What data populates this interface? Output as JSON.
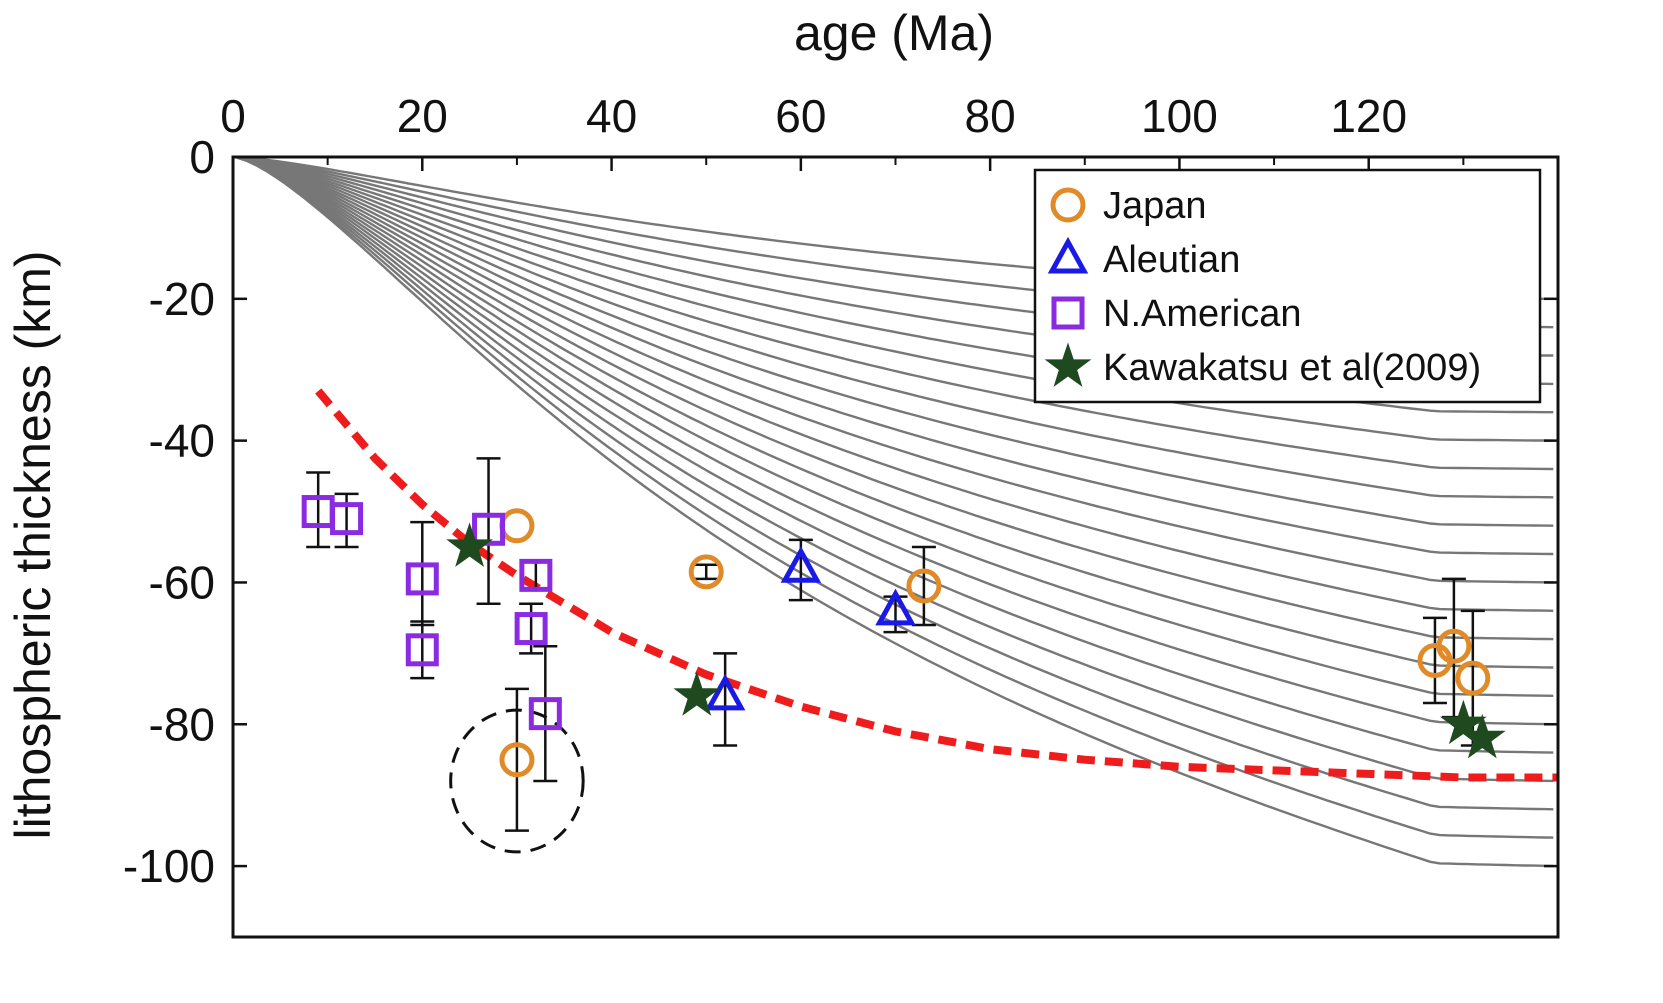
{
  "chart_data": {
    "type": "scatter",
    "xlabel": "age (Ma)",
    "ylabel": "lithospheric thickness (km)",
    "xlim": [
      0,
      140
    ],
    "ylim": [
      -110,
      0
    ],
    "x_ticks": [
      0,
      20,
      40,
      60,
      80,
      100,
      120
    ],
    "y_ticks": [
      0,
      -20,
      -40,
      -60,
      -80,
      -100
    ],
    "x_axis_position": "top",
    "legend_position": "top-right",
    "grid": false,
    "colors": {
      "japan": "#e08a28",
      "aleutian": "#1a1ae6",
      "namerican": "#8a2be2",
      "kawakatsu": "#1f4a1f",
      "model_curves": "#777777",
      "fit_curve": "#ee1c1c",
      "error_bars": "#111111"
    },
    "series": [
      {
        "name": "Japan",
        "marker": "circle",
        "points": [
          {
            "x": 30,
            "y": -52,
            "err_lo": -52,
            "err_hi": -52
          },
          {
            "x": 30,
            "y": -85,
            "err_lo": -95,
            "err_hi": -75
          },
          {
            "x": 50,
            "y": -58.5,
            "err_lo": -59.5,
            "err_hi": -57.5
          },
          {
            "x": 73,
            "y": -60.5,
            "err_lo": -66,
            "err_hi": -55
          },
          {
            "x": 127,
            "y": -71,
            "err_lo": -77,
            "err_hi": -65
          },
          {
            "x": 129,
            "y": -69,
            "err_lo": -79,
            "err_hi": -59.5
          },
          {
            "x": 131,
            "y": -73.5,
            "err_lo": -83,
            "err_hi": -64
          }
        ]
      },
      {
        "name": "Aleutian",
        "marker": "triangle",
        "points": [
          {
            "x": 52,
            "y": -76,
            "err_lo": -83,
            "err_hi": -70
          },
          {
            "x": 60,
            "y": -58,
            "err_lo": -62.5,
            "err_hi": -54
          },
          {
            "x": 70,
            "y": -64,
            "err_lo": -67,
            "err_hi": -62
          }
        ]
      },
      {
        "name": "N.American",
        "marker": "square",
        "points": [
          {
            "x": 9,
            "y": -50,
            "err_lo": -55,
            "err_hi": -44.5
          },
          {
            "x": 12,
            "y": -51,
            "err_lo": -55,
            "err_hi": -47.5
          },
          {
            "x": 20,
            "y": -59.5,
            "err_lo": -66,
            "err_hi": -51.5
          },
          {
            "x": 20,
            "y": -69.5,
            "err_lo": -73.5,
            "err_hi": -65.5
          },
          {
            "x": 27,
            "y": -52.5,
            "err_lo": -63,
            "err_hi": -42.5
          },
          {
            "x": 32,
            "y": -59,
            "err_lo": -61,
            "err_hi": -57
          },
          {
            "x": 31.5,
            "y": -66.5,
            "err_lo": -70,
            "err_hi": -63
          },
          {
            "x": 33,
            "y": -78.5,
            "err_lo": -88,
            "err_hi": -69
          }
        ]
      },
      {
        "name": "Kawakatsu et al(2009)",
        "marker": "star",
        "points": [
          {
            "x": 25,
            "y": -55
          },
          {
            "x": 49,
            "y": -76
          },
          {
            "x": 130,
            "y": -80
          },
          {
            "x": 132,
            "y": -82
          }
        ]
      }
    ],
    "model_curve_scales": [
      20,
      24,
      28,
      32,
      36,
      40,
      44,
      48,
      52,
      56,
      60,
      64,
      68,
      72,
      76,
      80,
      84,
      88,
      92,
      96,
      100
    ],
    "fit_curve": {
      "x": [
        9,
        15,
        20,
        25,
        30,
        35,
        40,
        50,
        60,
        70,
        80,
        90,
        100,
        110,
        120,
        130,
        140
      ],
      "y": [
        -33,
        -42.5,
        -49,
        -54.5,
        -59,
        -63,
        -67,
        -73,
        -77.5,
        -81,
        -83.5,
        -85,
        -86,
        -86.5,
        -87,
        -87.5,
        -87.5
      ]
    },
    "annotation": {
      "type": "dashed-ellipse",
      "center": [
        30,
        -88
      ],
      "rx": 7,
      "ry": 10
    }
  }
}
